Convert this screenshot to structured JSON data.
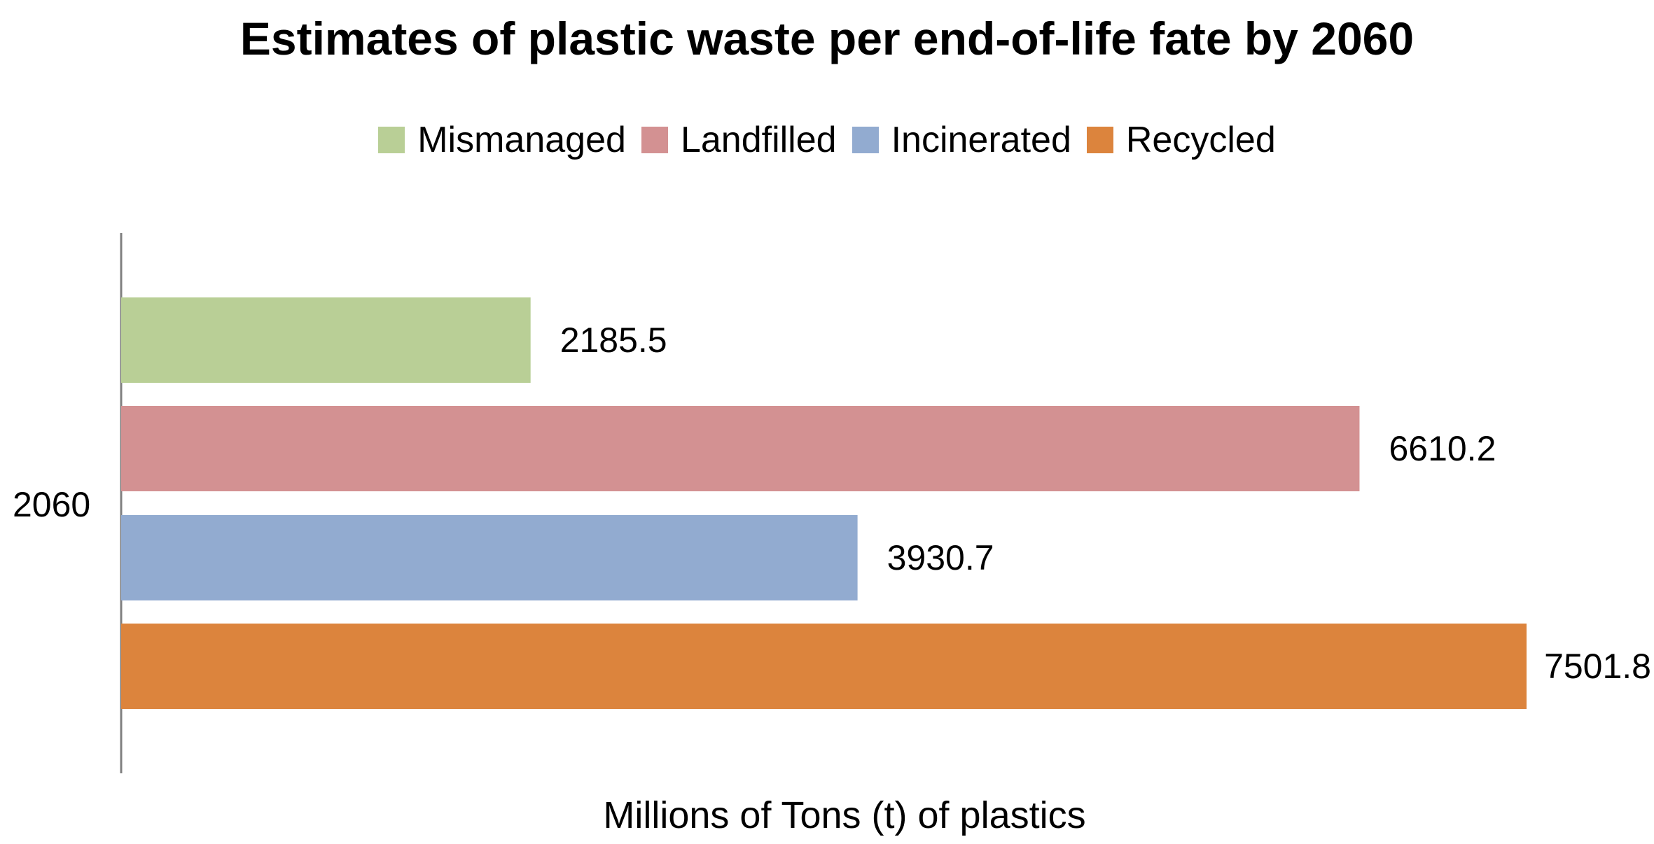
{
  "chart_data": {
    "type": "bar",
    "orientation": "horizontal",
    "title": "Estimates of plastic waste per end-of-life fate by 2060",
    "xlabel": "Millions of Tons (t) of plastics",
    "ylabel": "",
    "categories": [
      "2060"
    ],
    "series": [
      {
        "name": "Mismanaged",
        "values": [
          2185.5
        ],
        "color": "#b9cf96"
      },
      {
        "name": "Landfilled",
        "values": [
          6610.2
        ],
        "color": "#d39192"
      },
      {
        "name": "Incinerated",
        "values": [
          3930.7
        ],
        "color": "#92abd0"
      },
      {
        "name": "Recycled",
        "values": [
          7501.8
        ],
        "color": "#dc843d"
      }
    ],
    "data_labels": [
      "2185.5",
      "6610.2",
      "3930.7",
      "7501.8"
    ],
    "xlim": [
      0,
      7501.8
    ],
    "grid": false,
    "legend_position": "top"
  }
}
